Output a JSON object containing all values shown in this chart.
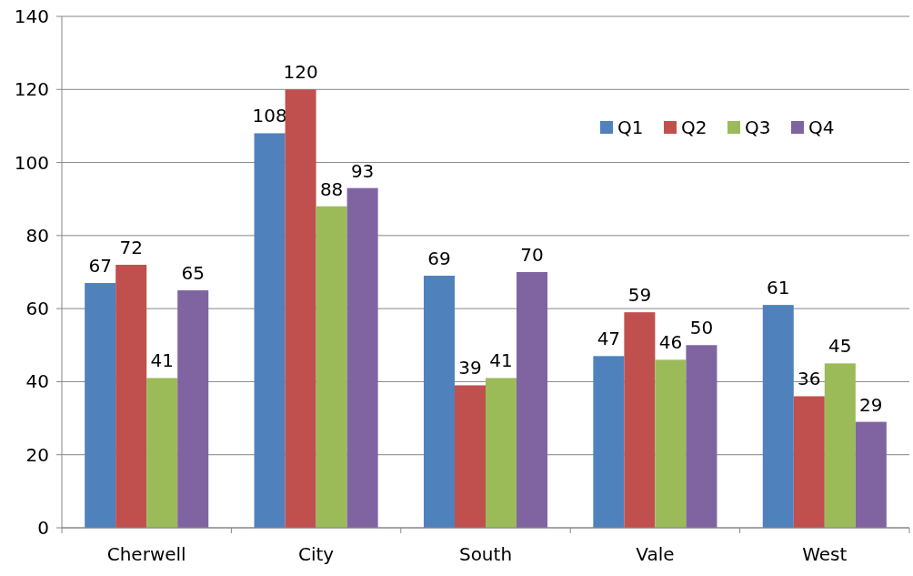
{
  "chart_data": {
    "type": "bar",
    "categories": [
      "Cherwell",
      "City",
      "South",
      "Vale",
      "West"
    ],
    "series": [
      {
        "name": "Q1",
        "color": "#4f81bd",
        "values": [
          67,
          108,
          69,
          47,
          61
        ]
      },
      {
        "name": "Q2",
        "color": "#c0504d",
        "values": [
          72,
          120,
          39,
          59,
          36
        ]
      },
      {
        "name": "Q3",
        "color": "#9bbb59",
        "values": [
          41,
          88,
          41,
          46,
          45
        ]
      },
      {
        "name": "Q4",
        "color": "#8064a2",
        "values": [
          65,
          93,
          70,
          50,
          29
        ]
      }
    ],
    "ylim": [
      0,
      140
    ],
    "yticks": [
      0,
      20,
      40,
      60,
      80,
      100,
      120,
      140
    ],
    "grid": "y",
    "legend": "top right",
    "data_labels": true
  }
}
